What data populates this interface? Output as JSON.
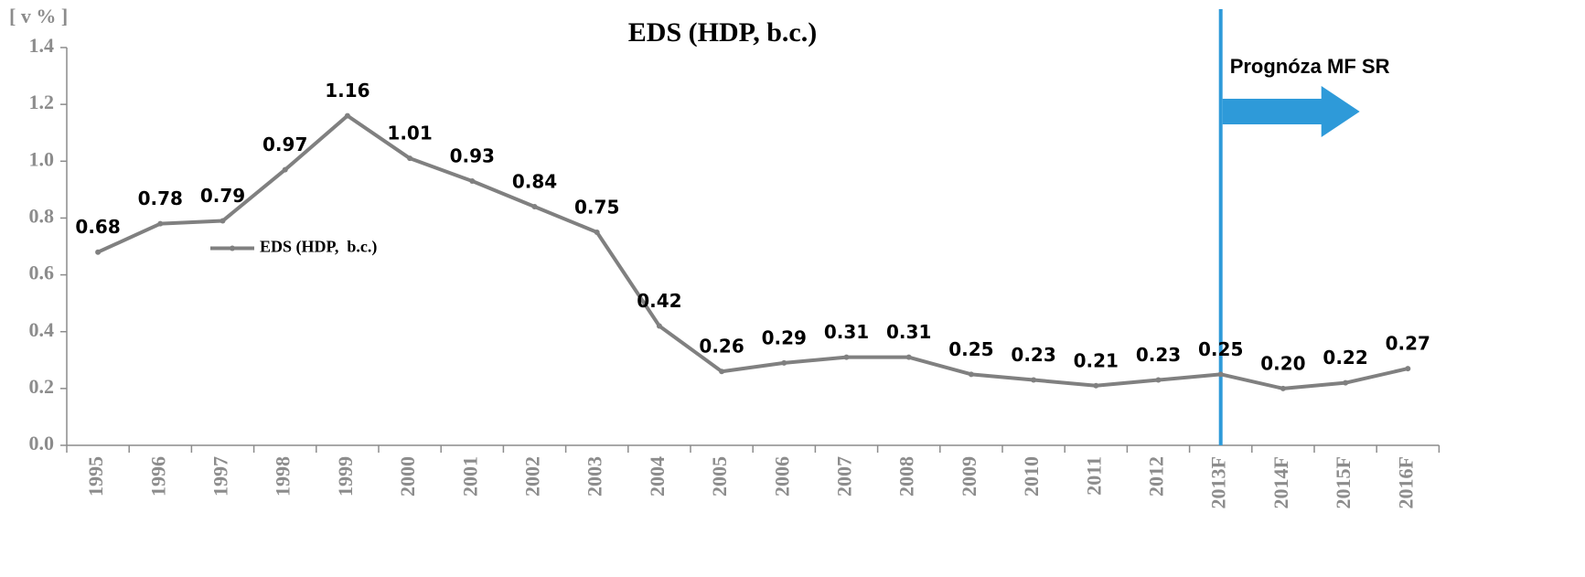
{
  "chart_data": {
    "type": "line",
    "title": "EDS (HDP, b.c.)",
    "y_label": "[ v % ]",
    "categories": [
      "1995",
      "1996",
      "1997",
      "1998",
      "1999",
      "2000",
      "2001",
      "2002",
      "2003",
      "2004",
      "2005",
      "2006",
      "2007",
      "2008",
      "2009",
      "2010",
      "2011",
      "2012",
      "2013F",
      "2014F",
      "2015F",
      "2016F"
    ],
    "series": [
      {
        "name": "EDS (HDP,  b.c.)",
        "color": "#808080",
        "values": [
          0.68,
          0.78,
          0.79,
          0.97,
          1.16,
          1.01,
          0.93,
          0.84,
          0.75,
          0.42,
          0.26,
          0.29,
          0.31,
          0.31,
          0.25,
          0.23,
          0.21,
          0.23,
          0.25,
          0.2,
          0.22,
          0.27
        ],
        "value_labels": [
          "0.68",
          "0.78",
          "0.79",
          "0.97",
          "1.16",
          "1.01",
          "0.93",
          "0.84",
          "0.75",
          "0.42",
          "0.26",
          "0.29",
          "0.31",
          "0.31",
          "0.25",
          "0.23",
          "0.21",
          "0.23",
          "0.25",
          "0.20",
          "0.22",
          "0.27"
        ]
      }
    ],
    "ylim": [
      0,
      1.4
    ],
    "yticks": [
      {
        "value": 0,
        "label": "0.0"
      },
      0.2,
      0.4,
      0.6,
      0.8,
      {
        "value": 1,
        "label": "1.0"
      },
      1.2,
      1.4
    ],
    "grid": false,
    "legend": "center-left",
    "forecast": {
      "start": "2013F",
      "label": "Prognóza MF SR",
      "color": "#2e9ad9"
    }
  }
}
